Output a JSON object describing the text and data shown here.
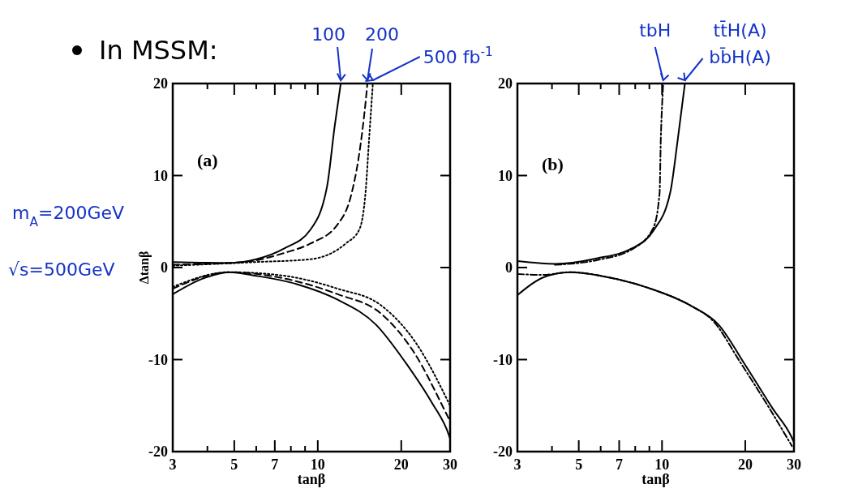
{
  "chart_data": [
    {
      "type": "line",
      "title": "In MSSM:",
      "xlabel": "tanβ",
      "ylabel": "Δtanβ",
      "log": "x",
      "xlim": [
        3,
        30
      ],
      "ylim": [
        -20,
        20
      ],
      "xticks": [
        3,
        {
          "value": 4,
          "label": null
        },
        5,
        {
          "value": 6,
          "label": null
        },
        7,
        {
          "value": 8,
          "label": null
        },
        {
          "value": 9,
          "label": null
        },
        10,
        20,
        30
      ],
      "yticks": [
        -20,
        -10,
        0,
        10,
        20
      ],
      "annotations": [
        "(a)",
        "m$_{A}$=200GeV",
        "√s=500GeV",
        {
          "text": "100",
          "x": 12.1,
          "y": 20
        },
        {
          "text": "200",
          "x": 15.1,
          "y": 20
        },
        {
          "text": "500 fb$^{-1}$",
          "x": 15.8,
          "y": 20
        }
      ],
      "series": [
        {
          "color": "#000000",
          "line_style": "solid",
          "x": [
            3,
            4.8,
            6.0,
            7.6,
            9.4,
            10.8,
            11.5,
            12.1
          ],
          "values": [
            0.6,
            0.5,
            0.9,
            2.1,
            4.1,
            8.8,
            15.3,
            20
          ]
        },
        {
          "color": "#000000",
          "line_style": "dashed",
          "x": [
            3,
            5.4,
            7.6,
            9.4,
            11.8,
            13.2,
            14.1,
            14.9,
            15.1
          ],
          "values": [
            0.3,
            0.6,
            1.6,
            2.6,
            4.7,
            7.9,
            12.3,
            18.2,
            20
          ]
        },
        {
          "color": "#000000",
          "line_style": "dotted",
          "x": [
            3,
            6.0,
            9.4,
            12.6,
            14.1,
            14.9,
            15.3,
            15.8
          ],
          "values": [
            0.2,
            0.6,
            0.9,
            2.6,
            4.1,
            8.5,
            13.8,
            20
          ]
        },
        {
          "color": "#000000",
          "line_style": "solid",
          "x": [
            3,
            3.85,
            4.8,
            6.0,
            8.4,
            11.8,
            16.2,
            20.7,
            25.8,
            29.7,
            30
          ],
          "values": [
            -2.9,
            -1.2,
            -0.5,
            -0.9,
            -1.8,
            -3.5,
            -6.2,
            -10.3,
            -14.7,
            -18.2,
            -18.6
          ]
        },
        {
          "color": "#000000",
          "line_style": "dashed",
          "x": [
            3,
            4.8,
            7.6,
            11.8,
            16.9,
            22.1,
            29.1,
            30
          ],
          "values": [
            -2.3,
            -0.5,
            -1.2,
            -2.9,
            -5.0,
            -9.1,
            -15.9,
            -16.7
          ]
        },
        {
          "color": "#000000",
          "line_style": "dotted",
          "x": [
            3,
            4.8,
            7.6,
            11.8,
            16.9,
            22.6,
            30
          ],
          "values": [
            -2.1,
            -0.5,
            -0.9,
            -2.3,
            -4.1,
            -8.2,
            -15
          ]
        }
      ]
    },
    {
      "type": "line",
      "xlabel": "tanβ",
      "log": "x",
      "xlim": [
        3,
        30
      ],
      "ylim": [
        -20,
        20
      ],
      "xticks": [
        3,
        {
          "value": 4,
          "label": null
        },
        5,
        {
          "value": 6,
          "label": null
        },
        7,
        {
          "value": 8,
          "label": null
        },
        {
          "value": 9,
          "label": null
        },
        10,
        20,
        30
      ],
      "yticks": [
        -20,
        -10,
        0,
        10,
        20
      ],
      "annotations": [
        "(b)",
        {
          "text": "tbH",
          "x": 10.1,
          "y": 20
        },
        {
          "text": "tt̄H(A)",
          "x": 12.1,
          "y": 20
        },
        {
          "text": "bb̄H(A)",
          "x": 12.1,
          "y": 20
        }
      ],
      "series": [
        {
          "color": "#000000",
          "line_style": "solid",
          "x": [
            3,
            4.1,
            5.8,
            7.8,
            9.3,
            10.7,
            11.4,
            12.1
          ],
          "values": [
            0.7,
            0.4,
            1.0,
            2.1,
            4.0,
            8.1,
            13.9,
            20
          ]
        },
        {
          "color": "#000000",
          "line_style": "dashdot",
          "x": [
            4.1,
            5.8,
            7.8,
            9.3,
            9.8,
            9.9,
            10.0,
            10.1
          ],
          "values": [
            0.3,
            0.8,
            2.0,
            4.3,
            8.1,
            14.0,
            17.5,
            20
          ]
        },
        {
          "color": "#000000",
          "line_style": "solid",
          "x": [
            3,
            3.7,
            4.65,
            6.5,
            9.1,
            12.8,
            16.0,
            20.0,
            25.1,
            29.5,
            30
          ],
          "values": [
            -3.0,
            -1.1,
            -0.5,
            -1.1,
            -2.3,
            -4.2,
            -6.2,
            -10.6,
            -15.3,
            -18.5,
            -19
          ]
        },
        {
          "color": "#000000",
          "line_style": "dashdot",
          "x": [
            3,
            3.7,
            4.65,
            6.5,
            9.1,
            12.8,
            15.3,
            19.1,
            24.0,
            29.5
          ],
          "values": [
            -0.7,
            -0.8,
            -0.5,
            -1.1,
            -2.3,
            -4.2,
            -5.8,
            -10.2,
            -14.9,
            -19.4
          ]
        }
      ]
    }
  ]
}
